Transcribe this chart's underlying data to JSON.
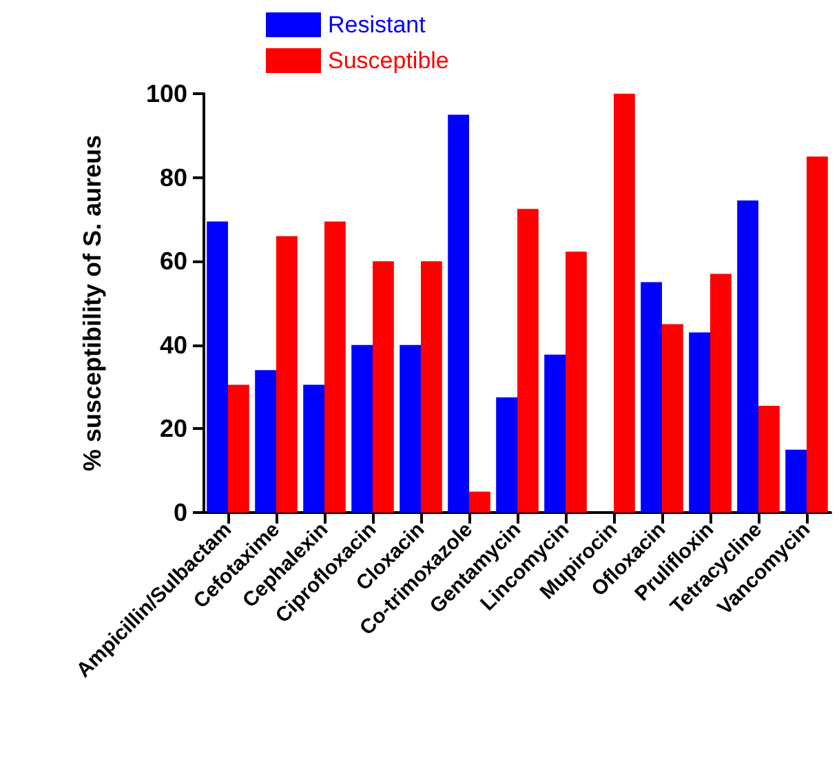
{
  "chart_data": {
    "type": "bar",
    "ylabel": "% susceptibility of S. aureus",
    "categories": [
      "Ampicillin/Sulbactam",
      "Cefotaxime",
      "Cephalexin",
      "Ciprofloxacin",
      "Cloxacin",
      "Co-trimoxazole",
      "Gentamycin",
      "Lincomycin",
      "Mupirocin",
      "Ofloxacin",
      "Prulifloxin",
      "Tetracycline",
      "Vancomycin"
    ],
    "series": [
      {
        "name": "Resistant",
        "color": "#0000ff",
        "values": [
          69.5,
          34,
          30.5,
          40,
          40,
          95,
          27.5,
          37.7,
          0,
          55,
          43,
          74.5,
          15
        ]
      },
      {
        "name": "Susceptible",
        "color": "#ff0000",
        "values": [
          30.5,
          66,
          69.5,
          60,
          60,
          5,
          72.5,
          62.3,
          100,
          45,
          57,
          25.5,
          85
        ]
      }
    ],
    "ylim": [
      0,
      100
    ],
    "yticks": [
      0,
      20,
      40,
      60,
      80,
      100
    ],
    "grid": false,
    "legend": "top left"
  }
}
